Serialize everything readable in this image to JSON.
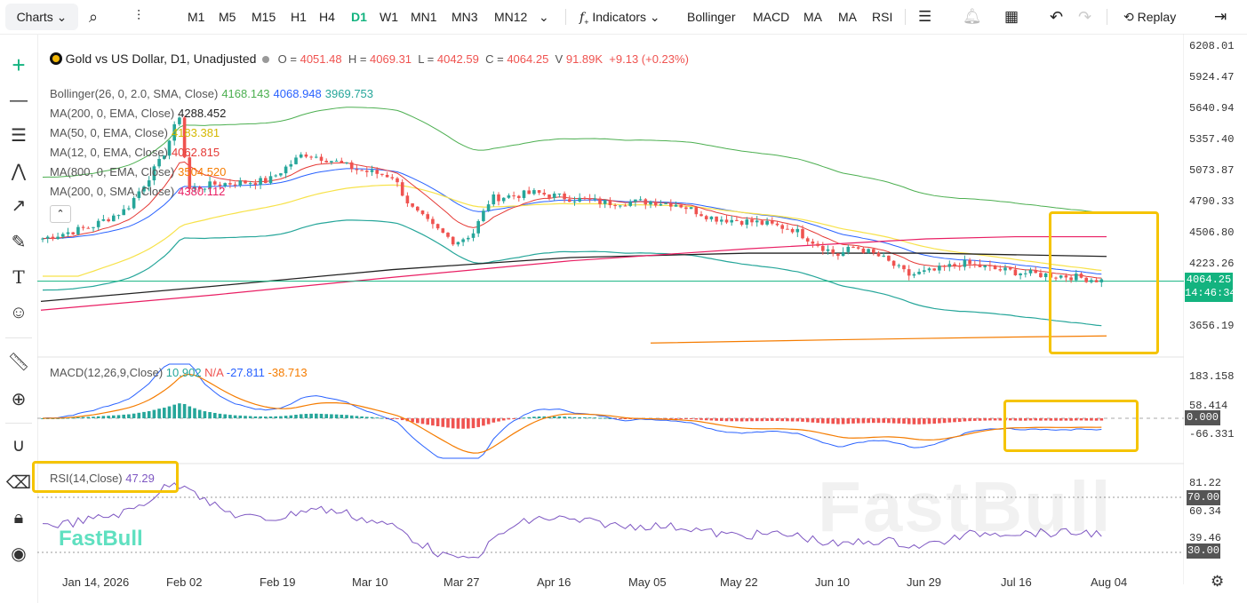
{
  "toolbar": {
    "charts": "Charts",
    "timeframes": [
      "M1",
      "M5",
      "M15",
      "H1",
      "H4",
      "D1",
      "W1",
      "MN1",
      "MN3",
      "MN12"
    ],
    "active_timeframe": "D1",
    "indicators": "Indicators",
    "quick_indicators": [
      "Bollinger",
      "MACD",
      "MA",
      "MA",
      "RSI"
    ],
    "replay": "Replay"
  },
  "legend": {
    "symbol": "Gold vs US Dollar, D1, Unadjusted",
    "o_label": "O =",
    "o": "4051.48",
    "h_label": "H =",
    "h": "4069.31",
    "l_label": "L =",
    "l": "4042.59",
    "c_label": "C =",
    "c": "4064.25",
    "v_label": "V",
    "v": "91.89K",
    "change": "+9.13 (+0.23%)"
  },
  "indicators": [
    {
      "name": "Bollinger(26, 0, 2.0, SMA, Close)",
      "values": [
        "4168.143",
        "4068.948",
        "3969.753"
      ],
      "colors": [
        "#4caf50",
        "#2962ff",
        "#26a69a"
      ]
    },
    {
      "name": "MA(200, 0, EMA, Close)",
      "values": [
        "4288.452"
      ],
      "colors": [
        "#222222"
      ]
    },
    {
      "name": "MA(50, 0, EMA, Close)",
      "values": [
        "4183.381"
      ],
      "colors": [
        "#f7e24a"
      ]
    },
    {
      "name": "MA(12, 0, EMA, Close)",
      "values": [
        "4062.815"
      ],
      "colors": [
        "#e53935"
      ]
    },
    {
      "name": "MA(800, 0, EMA, Close)",
      "values": [
        "3504.520"
      ],
      "colors": [
        "#f57c00"
      ]
    },
    {
      "name": "MA(200, 0, SMA, Close)",
      "values": [
        "4380.112"
      ],
      "colors": [
        "#e91e63"
      ]
    }
  ],
  "price_axis": [
    "6208.01",
    "5924.47",
    "5640.94",
    "5357.40",
    "5073.87",
    "4790.33",
    "4506.80",
    "4223.26",
    "3656.19"
  ],
  "current_price": "4064.25",
  "countdown": "14:46:34",
  "macd": {
    "name": "MACD(12,26,9,Close)",
    "values": [
      "10.902",
      "N/A",
      "-27.811",
      "-38.713"
    ],
    "axis": [
      "183.158",
      "58.414",
      "-66.331"
    ],
    "zero": "0.000"
  },
  "rsi": {
    "name": "RSI(14,Close)",
    "value": "47.29",
    "axis": [
      "81.22",
      "60.34",
      "39.46"
    ],
    "upper": "70.00",
    "lower": "30.00"
  },
  "dates": [
    "Jan 14, 2026",
    "Feb 02",
    "Feb 19",
    "Mar 10",
    "Mar 27",
    "Apr 16",
    "May 05",
    "May 22",
    "Jun 10",
    "Jun 29",
    "Jul 16",
    "Aug 04"
  ],
  "watermark": "FastBull",
  "colors": {
    "accent": "#13b37f",
    "up": "#26a69a",
    "down": "#ef5350",
    "highlight": "#f5c400"
  }
}
